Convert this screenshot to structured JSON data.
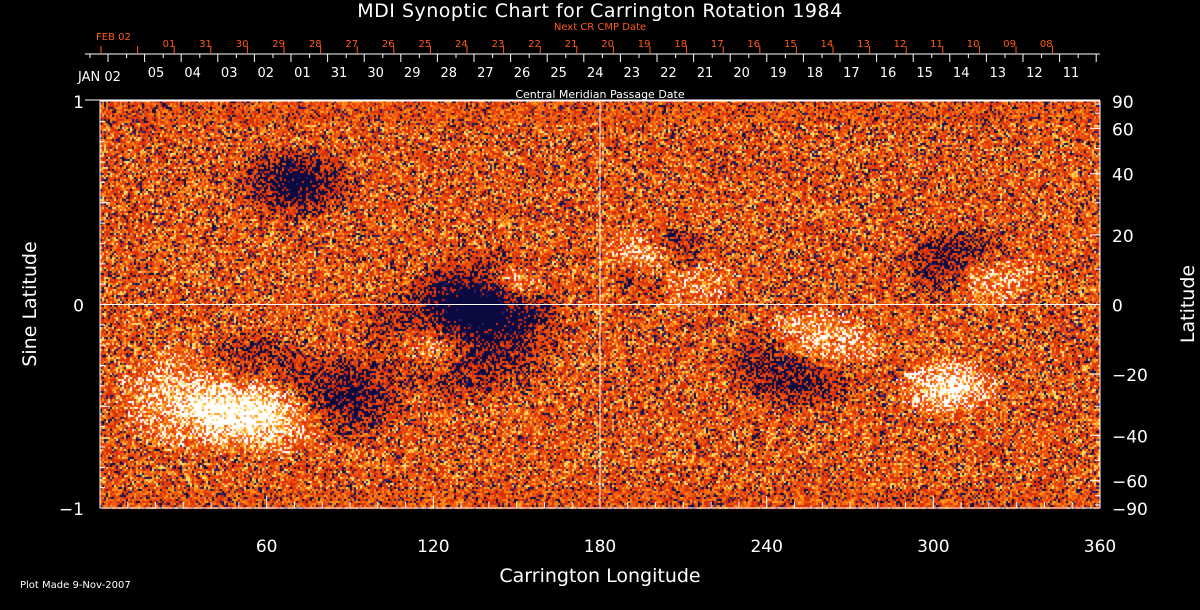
{
  "chart_data": {
    "type": "heatmap",
    "title": "MDI Synoptic Chart for Carrington Rotation 1984",
    "xlabel": "Carrington Longitude",
    "ylabel": "Sine Latitude",
    "ylabel_right": "Latitude",
    "top_axis_label": "Central Meridian Passage Date",
    "top_red_axis_label": "Next CR CMP Date",
    "xlim": [
      0,
      360
    ],
    "ylim": [
      -1,
      1
    ],
    "x_ticks": [
      "60",
      "120",
      "180",
      "240",
      "300",
      "360"
    ],
    "y_ticks": [
      "−1",
      "0",
      "1"
    ],
    "right_ticks": [
      "90",
      "60",
      "40",
      "20",
      "0",
      "−20",
      "−40",
      "−60",
      "−90"
    ],
    "cmp_dates": [
      "JAN 02",
      "05",
      "04",
      "03",
      "02",
      "01",
      "31",
      "30",
      "29",
      "28",
      "27",
      "26",
      "25",
      "24",
      "23",
      "22",
      "21",
      "20",
      "19",
      "18",
      "17",
      "16",
      "15",
      "14",
      "13",
      "12",
      "11"
    ],
    "next_cmp_dates": [
      "FEB 02",
      "01",
      "31",
      "30",
      "29",
      "28",
      "27",
      "26",
      "25",
      "24",
      "23",
      "22",
      "21",
      "20",
      "19",
      "18",
      "17",
      "16",
      "15",
      "14",
      "13",
      "12",
      "11",
      "10",
      "09",
      "08"
    ],
    "grid_lines": {
      "longitude": 180,
      "sine_latitude": 0
    },
    "colors": {
      "background_field": "#e8400c",
      "positive": "#ffffff",
      "negative": "#0a0a40",
      "red_axis": "#ff5a1a"
    }
  },
  "footer": {
    "plot_made": "Plot Made  9-Nov-2007"
  }
}
